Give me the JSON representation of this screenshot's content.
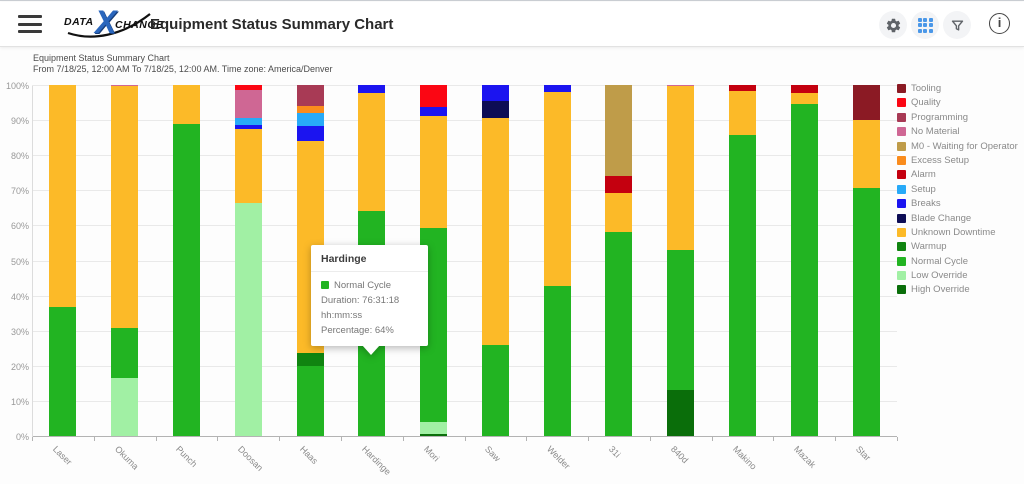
{
  "header": {
    "logo": {
      "part1": "DATA",
      "x": "X",
      "part2": "CHANGE"
    },
    "title": "Equipment Status Summary Chart",
    "info_glyph": "i"
  },
  "subtitle": {
    "line1": "Equipment Status Summary Chart",
    "line2": "From 7/18/25, 12:00 AM To 7/18/25, 12:00 AM. Time zone: America/Denver"
  },
  "tooltip": {
    "title": "Hardinge",
    "series": "Normal Cycle",
    "series_color": "#22b422",
    "duration": "Duration: 76:31:18 hh:mm:ss",
    "percentage": "Percentage: 64%"
  },
  "chart_data": {
    "type": "bar",
    "stacked": true,
    "ylim": [
      0,
      100
    ],
    "grid": true,
    "legend_position": "right",
    "y_ticks": [
      "0%",
      "10%",
      "20%",
      "30%",
      "40%",
      "50%",
      "60%",
      "70%",
      "80%",
      "90%",
      "100%"
    ],
    "categories": [
      "Laser",
      "Okuma",
      "Punch",
      "Doosan",
      "Haas",
      "Hardinge",
      "Mori",
      "Saw",
      "Welder",
      "31i",
      "840d",
      "Makino",
      "Mazak",
      "Star"
    ],
    "legend": [
      {
        "label": "Tooling",
        "color": "#8b1a24"
      },
      {
        "label": "Quality",
        "color": "#fb0613"
      },
      {
        "label": "Programming",
        "color": "#a83a55"
      },
      {
        "label": "No Material",
        "color": "#cf6794"
      },
      {
        "label": "M0 - Waiting for Operator",
        "color": "#bf9c49"
      },
      {
        "label": "Excess Setup",
        "color": "#fa8c1d"
      },
      {
        "label": "Alarm",
        "color": "#c4000f"
      },
      {
        "label": "Setup",
        "color": "#28aaf8"
      },
      {
        "label": "Breaks",
        "color": "#1b14f0"
      },
      {
        "label": "Blade Change",
        "color": "#0d0d55"
      },
      {
        "label": "Unknown Downtime",
        "color": "#fcba28"
      },
      {
        "label": "Warmup",
        "color": "#108410"
      },
      {
        "label": "Normal Cycle",
        "color": "#22b422"
      },
      {
        "label": "Low Override",
        "color": "#a1f0a4"
      },
      {
        "label": "High Override",
        "color": "#0a6e0a"
      }
    ],
    "highlight": {
      "category": "Hardinge",
      "status": "Normal Cycle"
    },
    "bars": [
      {
        "category": "Laser",
        "segments": [
          {
            "status": "Normal Cycle",
            "value": 36.8
          },
          {
            "status": "Unknown Downtime",
            "value": 63.2
          }
        ]
      },
      {
        "category": "Okuma",
        "segments": [
          {
            "status": "Low Override",
            "value": 16.4
          },
          {
            "status": "Normal Cycle",
            "value": 14.5
          },
          {
            "status": "Unknown Downtime",
            "value": 68.7
          },
          {
            "status": "No Material",
            "value": 0.4
          }
        ]
      },
      {
        "category": "Punch",
        "segments": [
          {
            "status": "Normal Cycle",
            "value": 88.8
          },
          {
            "status": "Unknown Downtime",
            "value": 11.2
          }
        ]
      },
      {
        "category": "Doosan",
        "segments": [
          {
            "status": "Low Override",
            "value": 66.5
          },
          {
            "status": "Unknown Downtime",
            "value": 21.0
          },
          {
            "status": "Breaks",
            "value": 1.2
          },
          {
            "status": "Setup",
            "value": 1.8
          },
          {
            "status": "No Material",
            "value": 8.2
          },
          {
            "status": "Quality",
            "value": 1.3
          }
        ]
      },
      {
        "category": "Haas",
        "segments": [
          {
            "status": "Normal Cycle",
            "value": 20.0
          },
          {
            "status": "Warmup",
            "value": 3.6
          },
          {
            "status": "Unknown Downtime",
            "value": 60.5
          },
          {
            "status": "Breaks",
            "value": 4.2
          },
          {
            "status": "Setup",
            "value": 3.8
          },
          {
            "status": "Excess Setup",
            "value": 2.0
          },
          {
            "status": "Programming",
            "value": 5.9
          }
        ]
      },
      {
        "category": "Hardinge",
        "segments": [
          {
            "status": "Normal Cycle",
            "value": 64.0
          },
          {
            "status": "Unknown Downtime",
            "value": 33.7
          },
          {
            "status": "Breaks",
            "value": 2.3
          }
        ]
      },
      {
        "category": "Mori",
        "segments": [
          {
            "status": "High Override",
            "value": 0.7
          },
          {
            "status": "Low Override",
            "value": 3.4
          },
          {
            "status": "Normal Cycle",
            "value": 55.2
          },
          {
            "status": "Unknown Downtime",
            "value": 31.9
          },
          {
            "status": "Breaks",
            "value": 2.4
          },
          {
            "status": "Quality",
            "value": 6.4
          }
        ]
      },
      {
        "category": "Saw",
        "segments": [
          {
            "status": "Normal Cycle",
            "value": 25.9
          },
          {
            "status": "Unknown Downtime",
            "value": 64.8
          },
          {
            "status": "Blade Change",
            "value": 4.8
          },
          {
            "status": "Breaks",
            "value": 4.5
          }
        ]
      },
      {
        "category": "Welder",
        "segments": [
          {
            "status": "Normal Cycle",
            "value": 42.6
          },
          {
            "status": "Unknown Downtime",
            "value": 55.4
          },
          {
            "status": "Breaks",
            "value": 2.0
          }
        ]
      },
      {
        "category": "31i",
        "segments": [
          {
            "status": "Normal Cycle",
            "value": 58.1
          },
          {
            "status": "Unknown Downtime",
            "value": 11.2
          },
          {
            "status": "Alarm",
            "value": 4.8
          },
          {
            "status": "M0 - Waiting for Operator",
            "value": 25.9
          }
        ]
      },
      {
        "category": "840d",
        "segments": [
          {
            "status": "High Override",
            "value": 13.1
          },
          {
            "status": "Normal Cycle",
            "value": 40.0
          },
          {
            "status": "Unknown Downtime",
            "value": 46.6
          },
          {
            "status": "No Material",
            "value": 0.3
          }
        ]
      },
      {
        "category": "Makino",
        "segments": [
          {
            "status": "Normal Cycle",
            "value": 85.8
          },
          {
            "status": "Unknown Downtime",
            "value": 12.5
          },
          {
            "status": "Alarm",
            "value": 1.7
          }
        ]
      },
      {
        "category": "Mazak",
        "segments": [
          {
            "status": "Normal Cycle",
            "value": 94.7
          },
          {
            "status": "Unknown Downtime",
            "value": 3.0
          },
          {
            "status": "Alarm",
            "value": 2.3
          }
        ]
      },
      {
        "category": "Star",
        "segments": [
          {
            "status": "Normal Cycle",
            "value": 70.7
          },
          {
            "status": "Unknown Downtime",
            "value": 19.3
          },
          {
            "status": "Tooling",
            "value": 10.0
          }
        ]
      }
    ]
  }
}
